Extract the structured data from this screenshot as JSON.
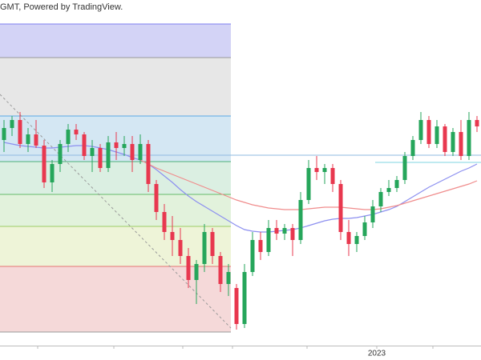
{
  "chart_data": {
    "type": "candlestick",
    "header": "GMT, Powered by TradingView.",
    "ylim": [
      0,
      432
    ],
    "xticks": [
      {
        "value": 46.5,
        "label": "2023"
      }
    ],
    "up_color": "#26a65b",
    "down_color": "#e8384f",
    "open": [
      257,
      272,
      282,
      252,
      264,
      250,
      204,
      227,
      252,
      270,
      264,
      237,
      247,
      222,
      254,
      247,
      252,
      232,
      252,
      202,
      167,
      142,
      132,
      112,
      82,
      102,
      142,
      112,
      77,
      72,
      27,
      92,
      132,
      117,
      147,
      140,
      147,
      132,
      182,
      222,
      217,
      222,
      202,
      142,
      127,
      137,
      154,
      174,
      192,
      197,
      207,
      237,
      257,
      282,
      252,
      274,
      242,
      267,
      237,
      282
    ],
    "high": [
      282,
      287,
      292,
      272,
      282,
      257,
      232,
      257,
      277,
      277,
      267,
      257,
      252,
      262,
      267,
      262,
      262,
      264,
      257,
      207,
      177,
      162,
      147,
      122,
      107,
      152,
      147,
      117,
      102,
      77,
      102,
      142,
      142,
      157,
      157,
      152,
      152,
      192,
      232,
      237,
      227,
      227,
      207,
      157,
      142,
      162,
      182,
      197,
      207,
      212,
      242,
      262,
      292,
      287,
      282,
      277,
      272,
      282,
      292,
      287
    ],
    "low": [
      242,
      262,
      247,
      242,
      247,
      197,
      192,
      217,
      242,
      257,
      232,
      217,
      217,
      217,
      232,
      237,
      217,
      227,
      192,
      157,
      132,
      112,
      102,
      72,
      52,
      92,
      102,
      67,
      62,
      20,
      22,
      87,
      107,
      112,
      132,
      132,
      112,
      127,
      177,
      207,
      202,
      192,
      132,
      112,
      117,
      132,
      147,
      167,
      187,
      192,
      202,
      232,
      252,
      247,
      247,
      237,
      237,
      232,
      232,
      267
    ],
    "close": [
      272,
      282,
      252,
      264,
      250,
      204,
      227,
      252,
      270,
      264,
      237,
      247,
      222,
      254,
      247,
      252,
      232,
      252,
      202,
      167,
      142,
      132,
      112,
      82,
      102,
      142,
      112,
      77,
      92,
      27,
      92,
      132,
      117,
      147,
      140,
      147,
      132,
      182,
      222,
      217,
      222,
      202,
      142,
      127,
      137,
      154,
      174,
      192,
      197,
      207,
      237,
      257,
      282,
      252,
      274,
      242,
      267,
      237,
      282,
      274
    ],
    "moving_averages": [
      {
        "color": "#8c8ff0",
        "values": [
          254,
          252,
          250,
          249,
          248,
          247,
          247,
          248,
          249,
          250,
          250,
          249,
          247,
          245,
          242,
          239,
          235,
          232,
          227,
          220,
          212,
          204,
          195,
          187,
          180,
          174,
          168,
          162,
          156,
          150,
          145,
          143,
          142,
          142,
          143,
          144,
          145,
          147,
          150,
          153,
          156,
          158,
          159,
          159,
          160,
          162,
          164,
          167,
          170,
          174,
          180,
          186,
          192,
          198,
          203,
          208,
          213,
          218,
          222,
          227
        ]
      },
      {
        "color": "#f08c8c",
        "values": [
          null,
          null,
          null,
          null,
          null,
          null,
          null,
          null,
          null,
          null,
          null,
          null,
          null,
          null,
          null,
          null,
          null,
          232,
          227,
          222,
          218,
          214,
          210,
          206,
          202,
          198,
          194,
          190,
          186,
          182,
          179,
          176,
          174,
          172,
          171,
          170,
          170,
          170,
          171,
          172,
          173,
          173,
          173,
          172,
          171,
          170,
          170,
          171,
          173,
          175,
          178,
          181,
          184,
          187,
          190,
          193,
          196,
          199,
          202,
          206
        ]
      }
    ],
    "fib_levels": [
      402,
      360,
      287,
      230,
      189,
      149,
      99,
      17
    ],
    "fib_line_colors": [
      "#7c7ff0",
      "#999999",
      "#5aa9e6",
      "#4caf7a",
      "#66bb6a",
      "#9ccc65",
      "#e57373",
      "#999999"
    ],
    "fib_fill_colors": [
      "#d3d3f6",
      "#e7e7e7",
      "#d4e7f3",
      "#dbefe2",
      "#e2f2dc",
      "#eef4d8",
      "#f5d9d9"
    ]
  }
}
